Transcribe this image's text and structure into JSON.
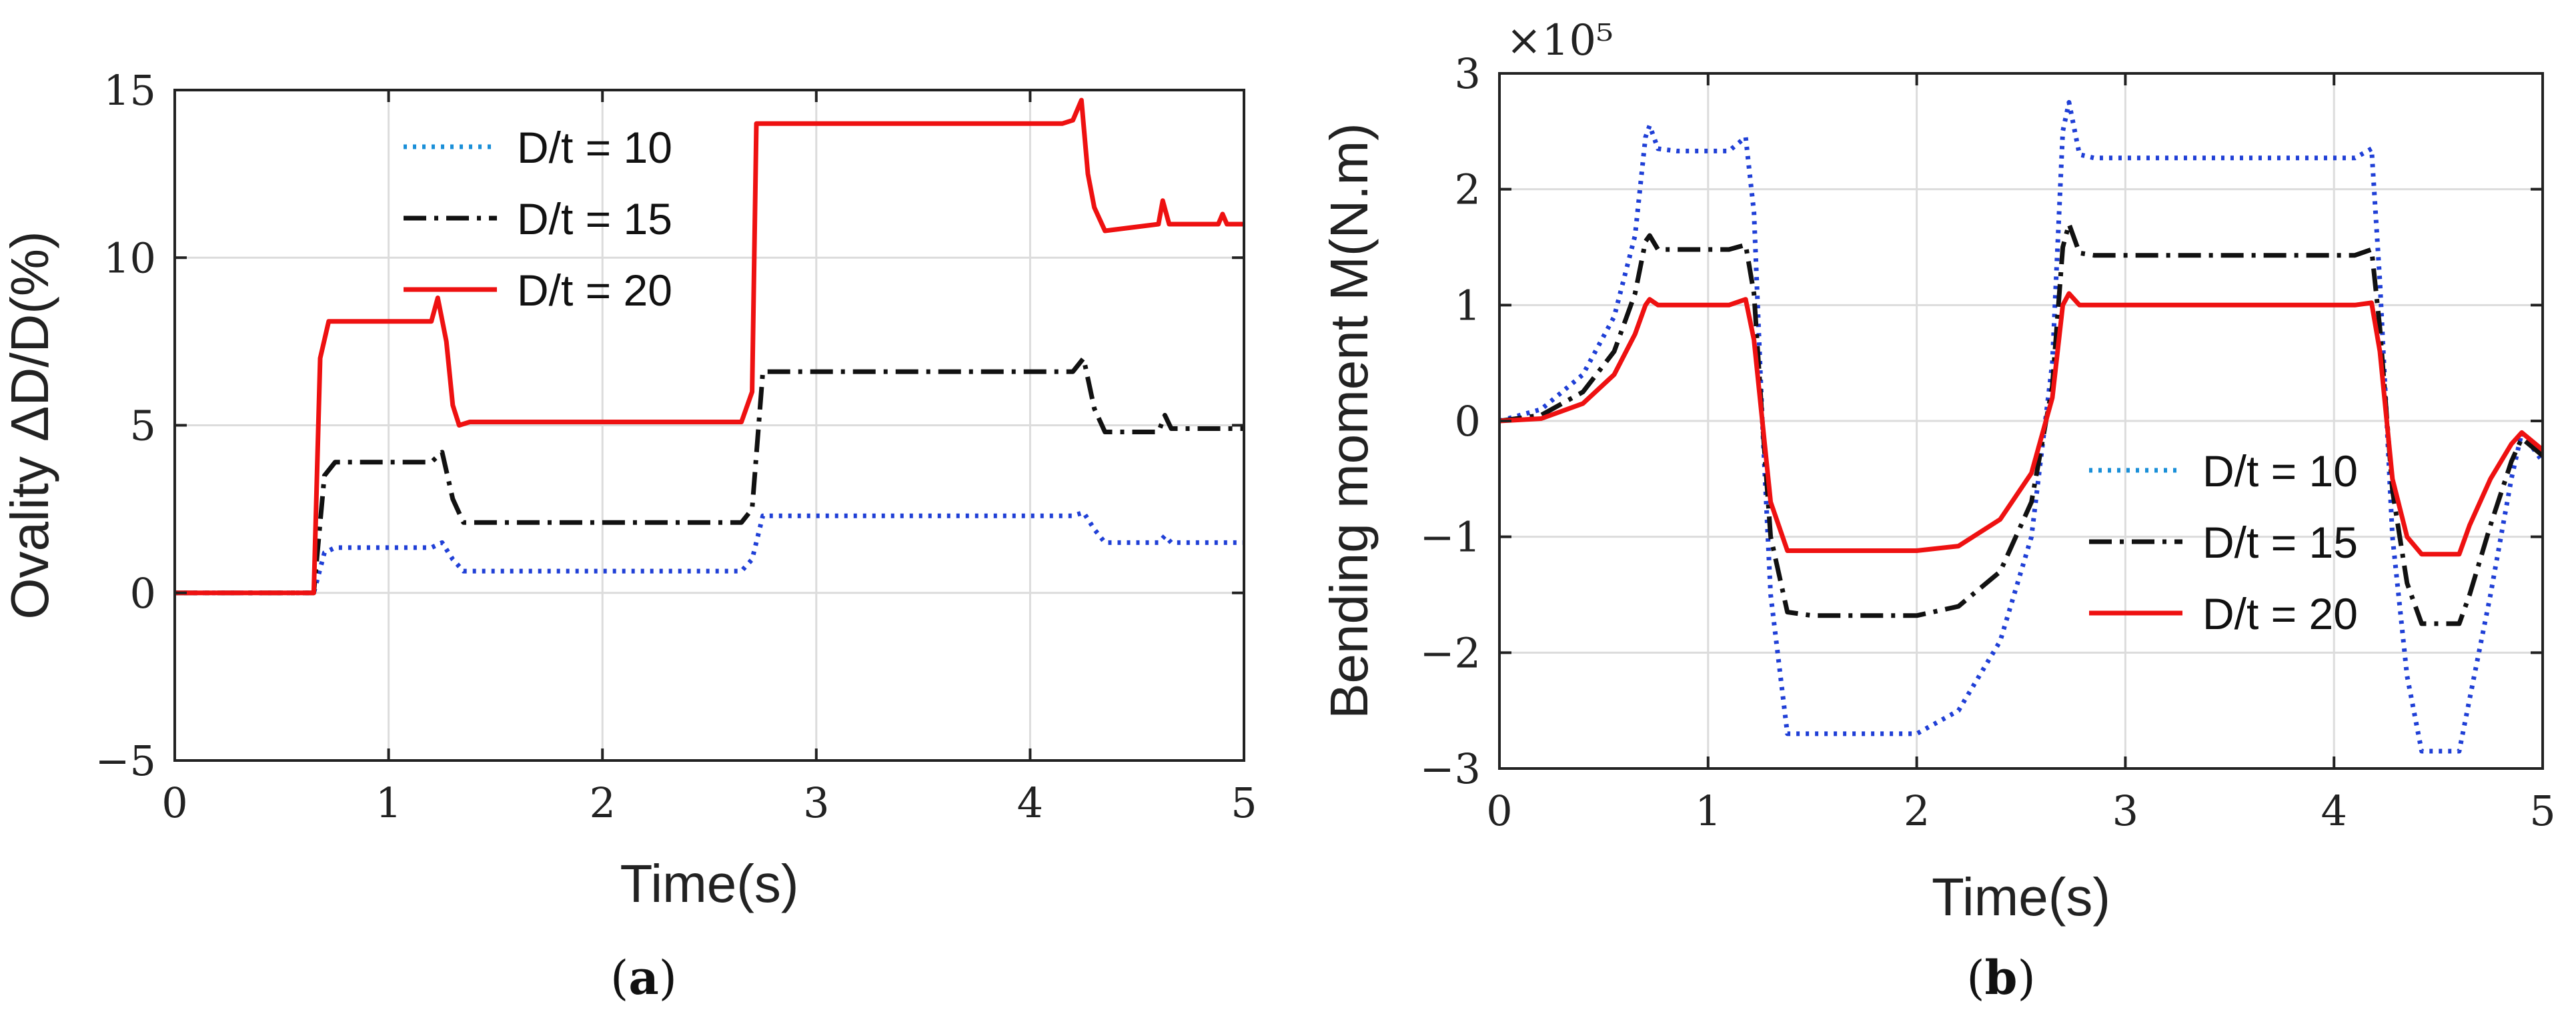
{
  "chart_data": [
    {
      "type": "line",
      "panel": "a",
      "caption_letter": "a",
      "xlabel": "Time(s)",
      "ylabel": "Ovality ΔD/D(%)",
      "xlim": [
        0,
        5
      ],
      "ylim": [
        -5,
        15
      ],
      "xticks": [
        "0",
        "1",
        "2",
        "3",
        "4",
        "5"
      ],
      "yticks": [
        "−5",
        "0",
        "5",
        "10",
        "15"
      ],
      "grid": true,
      "legend_position": "top-center",
      "series": [
        {
          "name": "D/t = 10",
          "color": "#1f3fd6",
          "legend_color": "#1a8fd8",
          "style": "dotted",
          "x": [
            0,
            0.65,
            0.7,
            0.75,
            1.2,
            1.25,
            1.3,
            1.35,
            2.65,
            2.7,
            2.75,
            4.15,
            4.2,
            4.25,
            4.3,
            4.35,
            4.6,
            4.63,
            4.66,
            5
          ],
          "y": [
            0,
            0,
            1.2,
            1.35,
            1.35,
            1.5,
            1.0,
            0.65,
            0.65,
            1.0,
            2.3,
            2.3,
            2.3,
            2.4,
            1.9,
            1.5,
            1.5,
            1.7,
            1.5,
            1.5
          ]
        },
        {
          "name": "D/t = 15",
          "color": "#111111",
          "style": "dashdot",
          "x": [
            0,
            0.65,
            0.7,
            0.75,
            1.2,
            1.25,
            1.3,
            1.35,
            2.65,
            2.7,
            2.75,
            4.15,
            4.2,
            4.25,
            4.3,
            4.35,
            4.6,
            4.63,
            4.66,
            5
          ],
          "y": [
            0,
            0,
            3.5,
            3.9,
            3.9,
            4.2,
            2.8,
            2.1,
            2.1,
            2.5,
            6.6,
            6.6,
            6.6,
            7.0,
            5.5,
            4.8,
            4.8,
            5.3,
            4.9,
            4.9
          ]
        },
        {
          "name": "D/t = 20",
          "color": "#ee1111",
          "style": "solid",
          "x": [
            0,
            0.65,
            0.68,
            0.72,
            1.2,
            1.23,
            1.27,
            1.3,
            1.33,
            1.38,
            2.65,
            2.7,
            2.72,
            2.76,
            4.15,
            4.2,
            4.24,
            4.27,
            4.3,
            4.35,
            4.6,
            4.62,
            4.65,
            4.88,
            4.9,
            4.92,
            5
          ],
          "y": [
            0,
            0,
            7.0,
            8.1,
            8.1,
            8.8,
            7.5,
            5.6,
            5.0,
            5.1,
            5.1,
            6.0,
            14.0,
            14.0,
            14.0,
            14.1,
            14.7,
            12.5,
            11.5,
            10.8,
            11.0,
            11.7,
            11.0,
            11.0,
            11.3,
            11.0,
            11.0
          ]
        }
      ]
    },
    {
      "type": "line",
      "panel": "b",
      "caption_letter": "b",
      "xlabel": "Time(s)",
      "ylabel": "Bending moment M(N.m)",
      "exponent_label": "×10⁵",
      "xlim": [
        0,
        5
      ],
      "ylim": [
        -3,
        3
      ],
      "xticks": [
        "0",
        "1",
        "2",
        "3",
        "4",
        "5"
      ],
      "yticks": [
        "−3",
        "−2",
        "−1",
        "0",
        "1",
        "2",
        "3"
      ],
      "grid": true,
      "legend_position": "bottom-right",
      "series": [
        {
          "name": "D/t = 10",
          "color": "#1f3fd6",
          "legend_color": "#1a8fd8",
          "style": "dotted",
          "x": [
            0,
            0.2,
            0.4,
            0.55,
            0.65,
            0.7,
            0.72,
            0.76,
            0.85,
            1.1,
            1.18,
            1.22,
            1.26,
            1.3,
            1.38,
            1.5,
            1.8,
            2.0,
            2.2,
            2.4,
            2.55,
            2.65,
            2.7,
            2.73,
            2.78,
            2.85,
            4.1,
            4.18,
            4.22,
            4.28,
            4.35,
            4.42,
            4.6,
            4.65,
            4.75,
            4.85,
            4.9,
            5
          ],
          "y": [
            0,
            0.1,
            0.4,
            0.9,
            1.6,
            2.45,
            2.55,
            2.35,
            2.33,
            2.33,
            2.45,
            1.8,
            0.0,
            -1.5,
            -2.7,
            -2.7,
            -2.7,
            -2.7,
            -2.5,
            -1.9,
            -1.0,
            0.5,
            2.5,
            2.75,
            2.3,
            2.27,
            2.27,
            2.35,
            1.2,
            -1.0,
            -2.2,
            -2.85,
            -2.85,
            -2.4,
            -1.5,
            -0.5,
            -0.1,
            -0.35
          ]
        },
        {
          "name": "D/t = 15",
          "color": "#111111",
          "style": "dashdot",
          "x": [
            0,
            0.2,
            0.4,
            0.55,
            0.65,
            0.7,
            0.72,
            0.76,
            0.85,
            1.1,
            1.18,
            1.22,
            1.26,
            1.3,
            1.38,
            1.5,
            1.8,
            2.0,
            2.2,
            2.4,
            2.55,
            2.65,
            2.7,
            2.73,
            2.78,
            2.85,
            4.1,
            4.18,
            4.22,
            4.28,
            4.35,
            4.42,
            4.6,
            4.65,
            4.75,
            4.85,
            4.9,
            5
          ],
          "y": [
            0,
            0.05,
            0.25,
            0.6,
            1.1,
            1.55,
            1.6,
            1.48,
            1.48,
            1.48,
            1.52,
            1.1,
            0.0,
            -1.0,
            -1.65,
            -1.68,
            -1.68,
            -1.68,
            -1.6,
            -1.3,
            -0.7,
            0.3,
            1.5,
            1.7,
            1.45,
            1.43,
            1.43,
            1.48,
            0.8,
            -0.6,
            -1.4,
            -1.75,
            -1.75,
            -1.5,
            -0.9,
            -0.35,
            -0.15,
            -0.3
          ]
        },
        {
          "name": "D/t = 20",
          "color": "#ee1111",
          "style": "solid",
          "x": [
            0,
            0.2,
            0.4,
            0.55,
            0.65,
            0.7,
            0.72,
            0.76,
            0.85,
            1.1,
            1.18,
            1.22,
            1.26,
            1.3,
            1.38,
            1.5,
            1.8,
            2.0,
            2.2,
            2.4,
            2.55,
            2.65,
            2.7,
            2.73,
            2.78,
            2.85,
            4.1,
            4.18,
            4.22,
            4.28,
            4.35,
            4.42,
            4.6,
            4.65,
            4.75,
            4.85,
            4.9,
            5
          ],
          "y": [
            0,
            0.02,
            0.15,
            0.4,
            0.75,
            1.0,
            1.05,
            1.0,
            1.0,
            1.0,
            1.05,
            0.7,
            0.0,
            -0.7,
            -1.12,
            -1.12,
            -1.12,
            -1.12,
            -1.08,
            -0.85,
            -0.45,
            0.2,
            1.0,
            1.1,
            1.0,
            1.0,
            1.0,
            1.02,
            0.6,
            -0.5,
            -1.0,
            -1.15,
            -1.15,
            -0.9,
            -0.5,
            -0.2,
            -0.1,
            -0.25
          ]
        }
      ]
    }
  ]
}
